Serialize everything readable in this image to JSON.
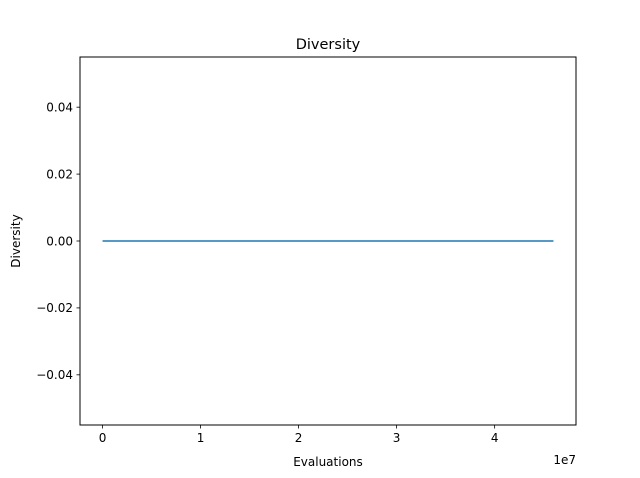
{
  "chart_data": {
    "type": "line",
    "title": "Diversity",
    "xlabel": "Evaluations",
    "ylabel": "Diversity",
    "x_offset_label": "1e7",
    "xlim": [
      -2300000,
      48300000
    ],
    "ylim": [
      -0.055,
      0.055
    ],
    "x_ticks": [
      0,
      10000000,
      20000000,
      30000000,
      40000000
    ],
    "x_tick_labels": [
      "0",
      "1",
      "2",
      "3",
      "4"
    ],
    "y_ticks": [
      -0.04,
      -0.02,
      0.0,
      0.02,
      0.04
    ],
    "y_tick_labels": [
      "−0.04",
      "−0.02",
      "0.00",
      "0.02",
      "0.04"
    ],
    "grid": false,
    "series": [
      {
        "color": "#1f77b4",
        "x": [
          0,
          46000000
        ],
        "y": [
          0.0,
          0.0
        ]
      }
    ]
  }
}
